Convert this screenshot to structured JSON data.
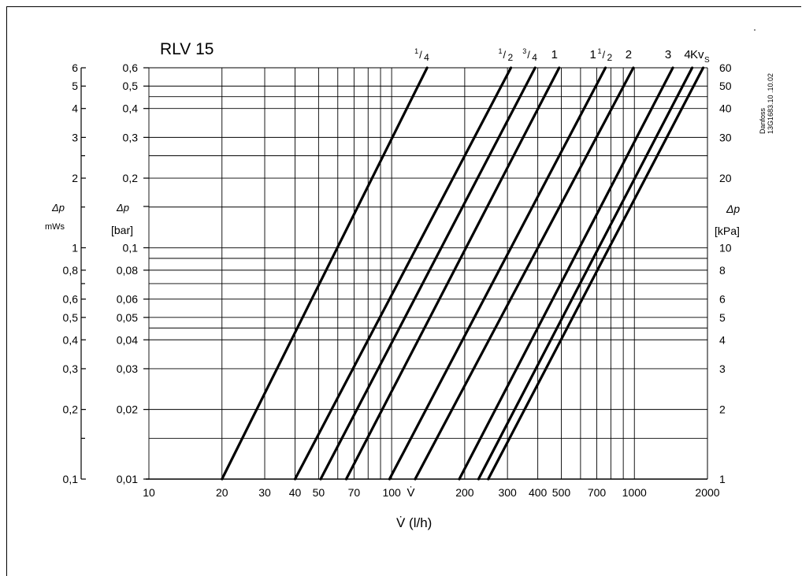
{
  "chart_data": {
    "type": "line",
    "title": "RLV 15",
    "x_scale": "log",
    "y_scale": "log",
    "xlim": [
      10,
      2000
    ],
    "ylim": [
      0.01,
      0.6
    ],
    "x_ticks": [
      "10",
      "20",
      "30",
      "40",
      "50",
      "70",
      "100",
      "200",
      "300",
      "400",
      "500",
      "700",
      "1000",
      "2000"
    ],
    "x_tick_values": [
      10,
      20,
      30,
      40,
      50,
      70,
      100,
      200,
      300,
      400,
      500,
      700,
      1000,
      2000
    ],
    "x_marker_label": "V̇",
    "x_marker_value": 120,
    "xlabel": "V̇ (l/h)",
    "y_bar_ticks": [
      {
        "v": 0.6,
        "label": "0,6"
      },
      {
        "v": 0.5,
        "label": "0,5"
      },
      {
        "v": 0.4,
        "label": "0,4"
      },
      {
        "v": 0.3,
        "label": "0,3"
      },
      {
        "v": 0.2,
        "label": "0,2"
      },
      {
        "v": 0.1,
        "label": "0,1"
      },
      {
        "v": 0.08,
        "label": "0,08"
      },
      {
        "v": 0.06,
        "label": "0,06"
      },
      {
        "v": 0.05,
        "label": "0,05"
      },
      {
        "v": 0.04,
        "label": "0,04"
      },
      {
        "v": 0.03,
        "label": "0,03"
      },
      {
        "v": 0.02,
        "label": "0,02"
      },
      {
        "v": 0.01,
        "label": "0,01"
      }
    ],
    "y_mws_ticks": [
      {
        "v": 0.6,
        "label": "6"
      },
      {
        "v": 0.5,
        "label": "5"
      },
      {
        "v": 0.4,
        "label": "4"
      },
      {
        "v": 0.3,
        "label": "3"
      },
      {
        "v": 0.2,
        "label": "2"
      },
      {
        "v": 0.1,
        "label": "1"
      },
      {
        "v": 0.08,
        "label": "0,8"
      },
      {
        "v": 0.06,
        "label": "0,6"
      },
      {
        "v": 0.05,
        "label": "0,5"
      },
      {
        "v": 0.04,
        "label": "0,4"
      },
      {
        "v": 0.03,
        "label": "0,3"
      },
      {
        "v": 0.02,
        "label": "0,2"
      },
      {
        "v": 0.01,
        "label": "0,1"
      }
    ],
    "y_kpa_ticks": [
      {
        "v": 0.6,
        "label": "60"
      },
      {
        "v": 0.5,
        "label": "50"
      },
      {
        "v": 0.4,
        "label": "40"
      },
      {
        "v": 0.3,
        "label": "30"
      },
      {
        "v": 0.2,
        "label": "20"
      },
      {
        "v": 0.1,
        "label": "10"
      },
      {
        "v": 0.08,
        "label": "8"
      },
      {
        "v": 0.06,
        "label": "6"
      },
      {
        "v": 0.05,
        "label": "5"
      },
      {
        "v": 0.04,
        "label": "4"
      },
      {
        "v": 0.03,
        "label": "3"
      },
      {
        "v": 0.02,
        "label": "2"
      },
      {
        "v": 0.01,
        "label": "1"
      }
    ],
    "y_extra_gridlines": [
      0.45,
      0.25,
      0.15,
      0.09,
      0.07,
      0.045,
      0.015
    ],
    "y_mws_extra_ticks": [
      0.25,
      0.15,
      0.07,
      0.015
    ],
    "y_left_label": "Δp",
    "y_left_unit": "mWs",
    "y_mid_label": "Δp",
    "y_mid_unit": "[bar]",
    "y_right_label": "Δp",
    "y_right_unit": "[kPa]",
    "kvs_label": "Kv",
    "kvs_subscript": "S",
    "series": [
      {
        "name": "1/4",
        "label_main": "",
        "num": "1",
        "den": "4",
        "x_start": 20,
        "x_end": 140
      },
      {
        "name": "1/2",
        "label_main": "",
        "num": "1",
        "den": "2",
        "x_start": 40,
        "x_end": 310
      },
      {
        "name": "3/4",
        "label_main": "",
        "num": "3",
        "den": "4",
        "x_start": 51,
        "x_end": 390
      },
      {
        "name": "1",
        "label_main": "1",
        "num": "",
        "den": "",
        "x_start": 65,
        "x_end": 490
      },
      {
        "name": "1 1/2",
        "label_main": "1",
        "num": "1",
        "den": "2",
        "x_start": 98,
        "x_end": 760
      },
      {
        "name": "2",
        "label_main": "2",
        "num": "",
        "den": "",
        "x_start": 125,
        "x_end": 990
      },
      {
        "name": "3",
        "label_main": "3",
        "num": "",
        "den": "",
        "x_start": 190,
        "x_end": 1440
      },
      {
        "name": "4",
        "label_main": "4",
        "num": "",
        "den": "",
        "x_start": 228,
        "x_end": 1730
      },
      {
        "name": "4 (Kvs)",
        "label_main": "",
        "num": "",
        "den": "",
        "x_start": 250,
        "x_end": 1920
      }
    ]
  },
  "side_text": {
    "brand": "Danfoss",
    "code": "13G1683.10 .10.02"
  }
}
